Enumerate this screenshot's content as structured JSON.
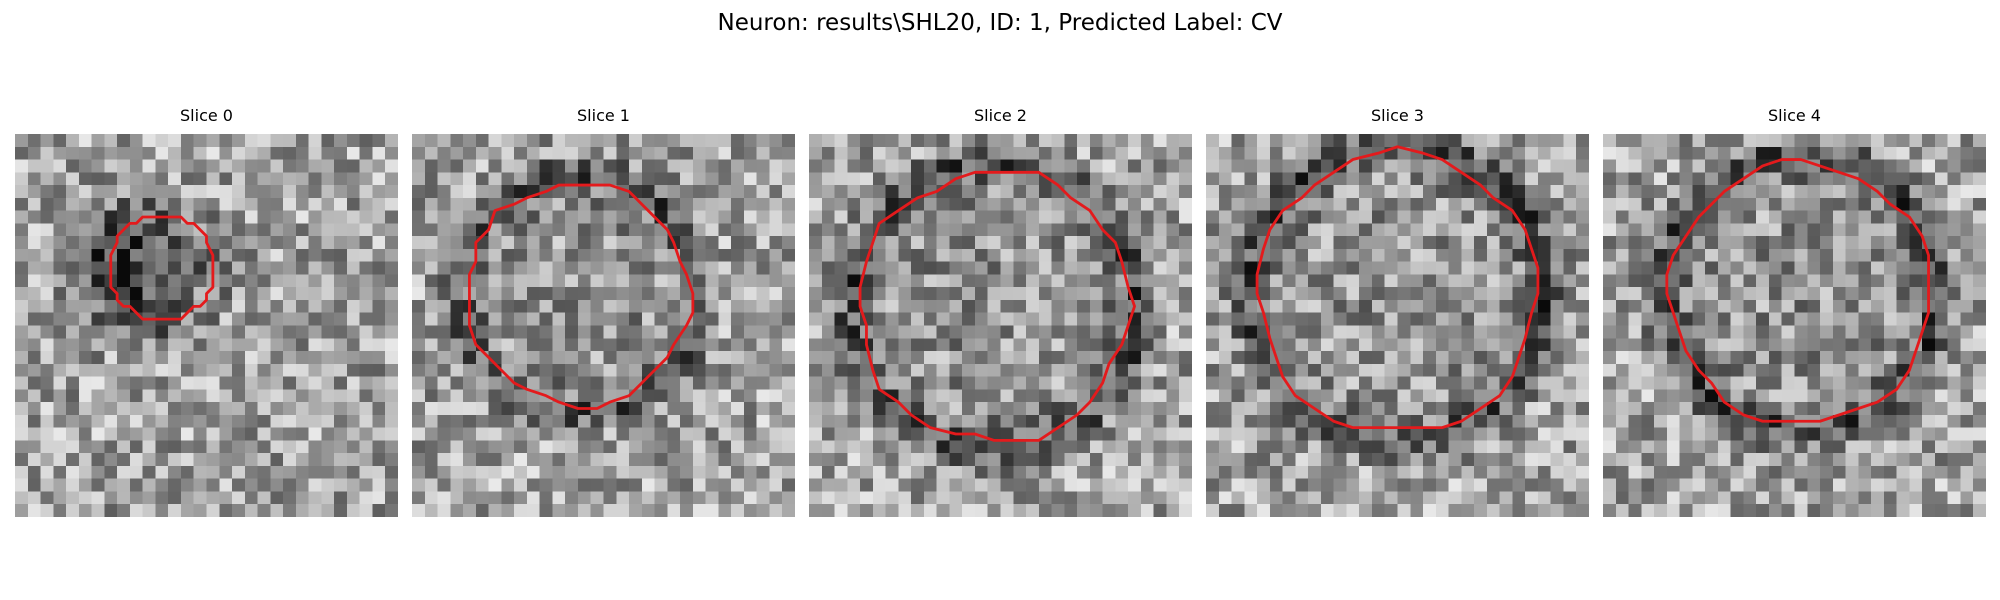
{
  "figure": {
    "title": "Neuron: results\\SHL20, ID: 1, Predicted Label: CV"
  },
  "contour_color": "#e41a1c",
  "panels": [
    {
      "title": "Slice 0",
      "ring_radius": 4.7,
      "ring_strength": 0.12,
      "dark_blob": 0.35,
      "contour_level": 0.38
    },
    {
      "title": "Slice 1",
      "ring_radius": 9.3,
      "ring_strength": 0.3,
      "dark_blob": 0.0,
      "contour_level": 0.7
    },
    {
      "title": "Slice 2",
      "ring_radius": 11.2,
      "ring_strength": 0.32,
      "dark_blob": 0.0,
      "contour_level": 0.8
    },
    {
      "title": "Slice 3",
      "ring_radius": 11.6,
      "ring_strength": 0.33,
      "dark_blob": 0.0,
      "contour_level": 0.8
    },
    {
      "title": "Slice 4",
      "ring_radius": 10.8,
      "ring_strength": 0.34,
      "dark_blob": 0.0,
      "contour_level": 0.76
    }
  ]
}
